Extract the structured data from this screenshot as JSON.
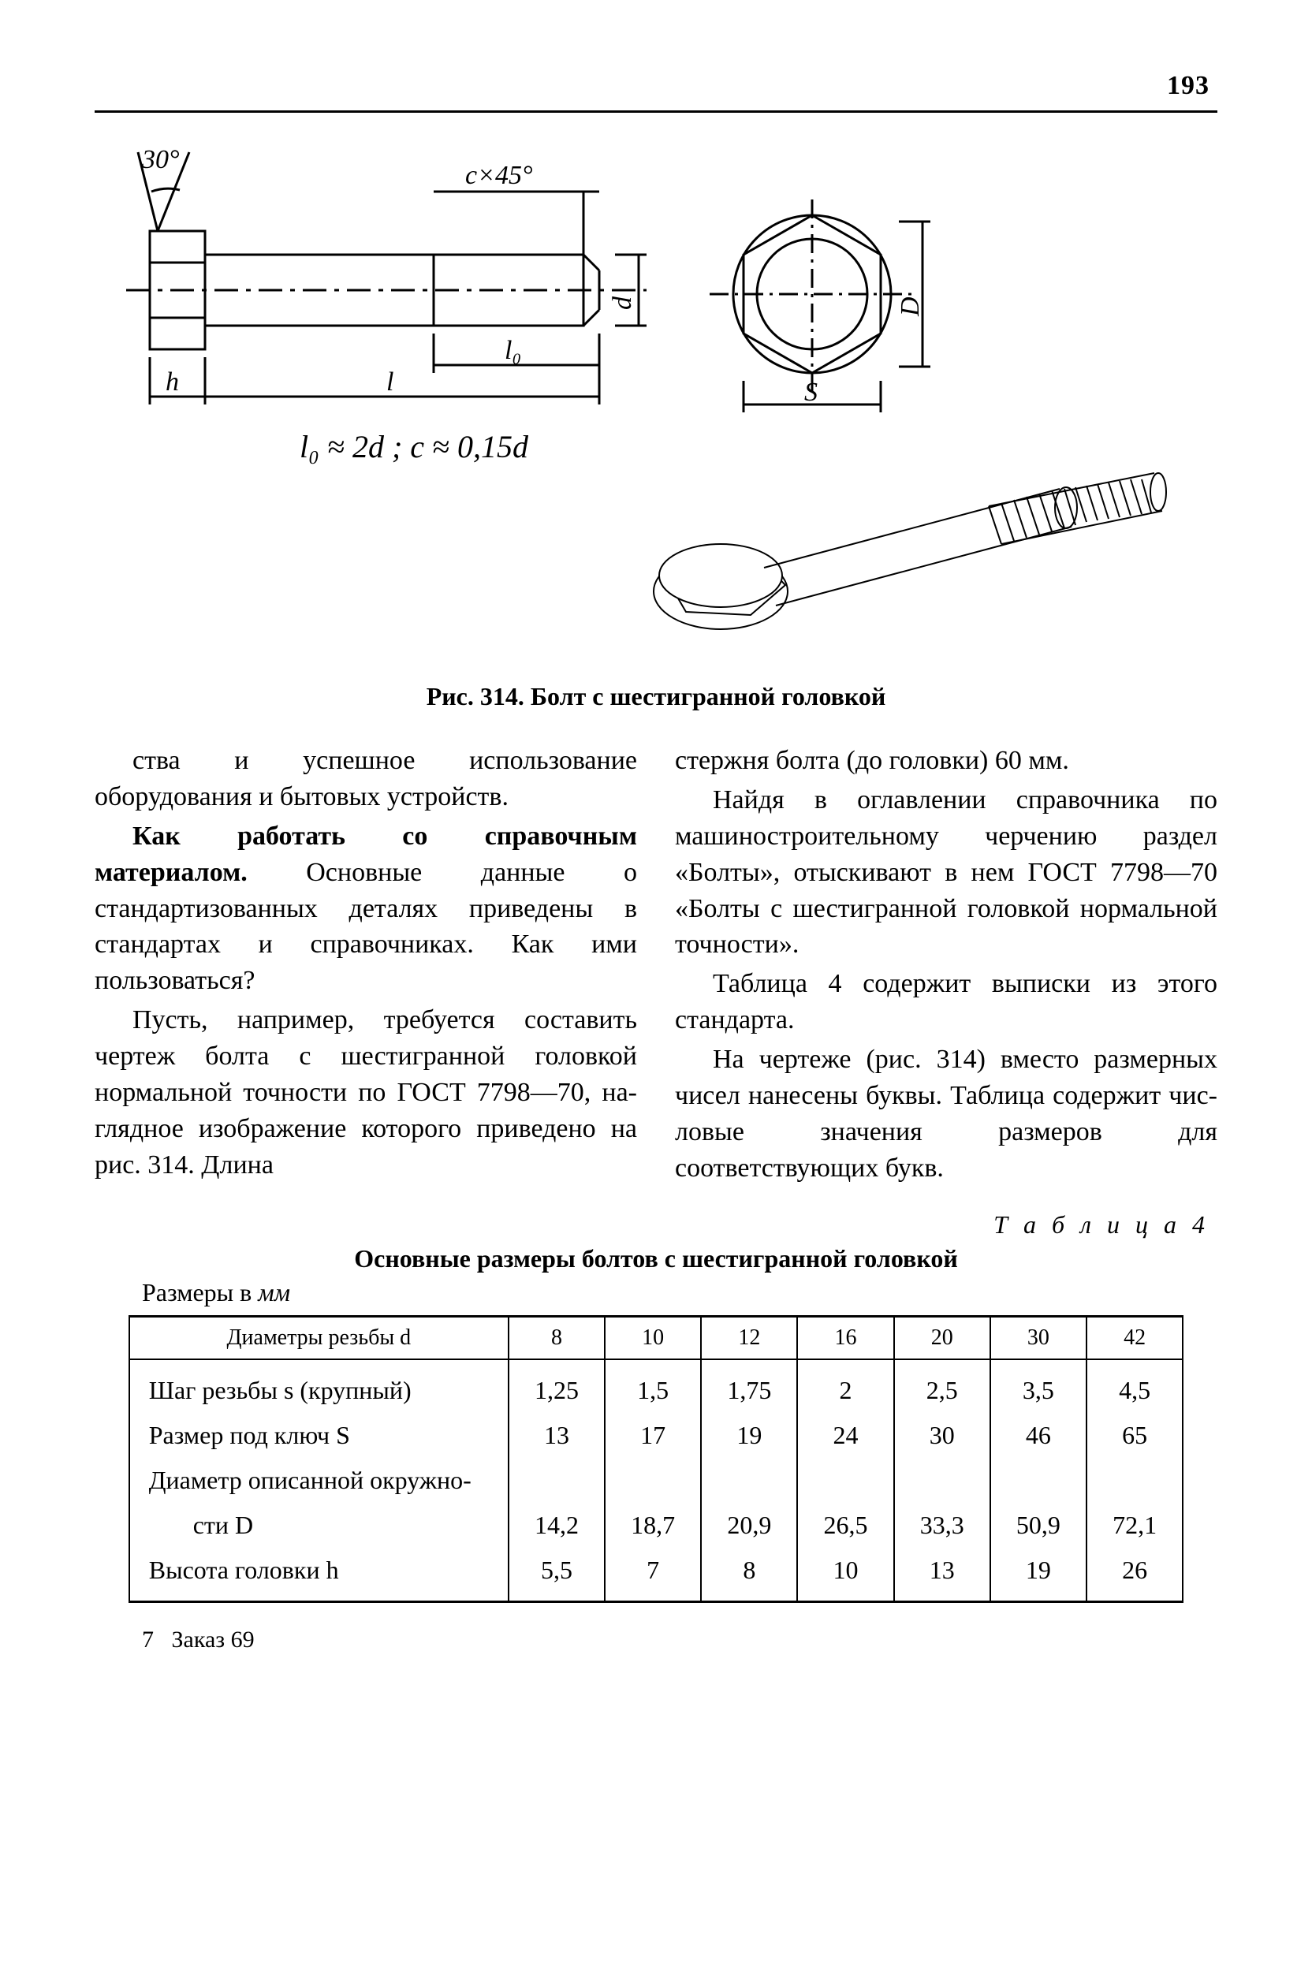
{
  "page_number": "193",
  "figure": {
    "caption": "Рис. 314. Болт с шестигранной головкой",
    "angle_label": "30°",
    "chamfer_label": "c×45°",
    "dim_d": "d",
    "dim_l": "l",
    "dim_l0": "l₀",
    "dim_h": "h",
    "dim_D": "D",
    "dim_S": "S",
    "formula": "l₀ ≈ 2d ; c ≈ 0,15d"
  },
  "body": {
    "p1": "ства и успешное использование оборудования и бытовых уст­ройств.",
    "p2a": "Как работать со справочным материалом.",
    "p2b": " Основные данные о стандартизованных деталях приведены в стандартах и спра­вочниках. Как ими пользоваться?",
    "p3": "Пусть, например, требуется составить чертеж болта с шести­гранной головкой нормальной точности по ГОСТ 7798—70, на­глядное изображение которого приведено на рис. 314. Длина",
    "p4": "стержня болта (до головки) 60 мм.",
    "p5": "Найдя в оглавлении справоч­ника по машиностроительному черчению раздел «Болты», оты­скивают в нем ГОСТ 7798—70 «Болты с шестигранной голов­кой нормальной точности».",
    "p6": "Таблица 4 содержит выпи­ски из этого стандарта.",
    "p7": "На чертеже (рис. 314) вме­сто размерных чисел нанесены буквы. Таблица содержит чис­ловые значения размеров для соответствующих букв."
  },
  "table": {
    "label": "Т а б л и ц а  4",
    "title": "Основные размеры болтов с шестигранной головкой",
    "units_prefix": "Размеры в ",
    "units_suffix": "мм",
    "header": "Диаметры резьбы d",
    "diam": [
      "8",
      "10",
      "12",
      "16",
      "20",
      "30",
      "42"
    ],
    "rows": [
      {
        "label": "Шаг резьбы s (крупный)",
        "vals": [
          "1,25",
          "1,5",
          "1,75",
          "2",
          "2,5",
          "3,5",
          "4,5"
        ]
      },
      {
        "label": "Размер под ключ S",
        "vals": [
          "13",
          "17",
          "19",
          "24",
          "30",
          "46",
          "65"
        ]
      },
      {
        "label": "Диаметр описанной окружно-",
        "vals": [
          "",
          "",
          "",
          "",
          "",
          "",
          ""
        ]
      },
      {
        "label": "сти D",
        "indent": true,
        "vals": [
          "14,2",
          "18,7",
          "20,9",
          "26,5",
          "33,3",
          "50,9",
          "72,1"
        ]
      },
      {
        "label": "Высота головки h",
        "vals": [
          "5,5",
          "7",
          "8",
          "10",
          "13",
          "19",
          "26"
        ]
      }
    ]
  },
  "footer": {
    "sheet": "7",
    "order": "Заказ 69"
  }
}
